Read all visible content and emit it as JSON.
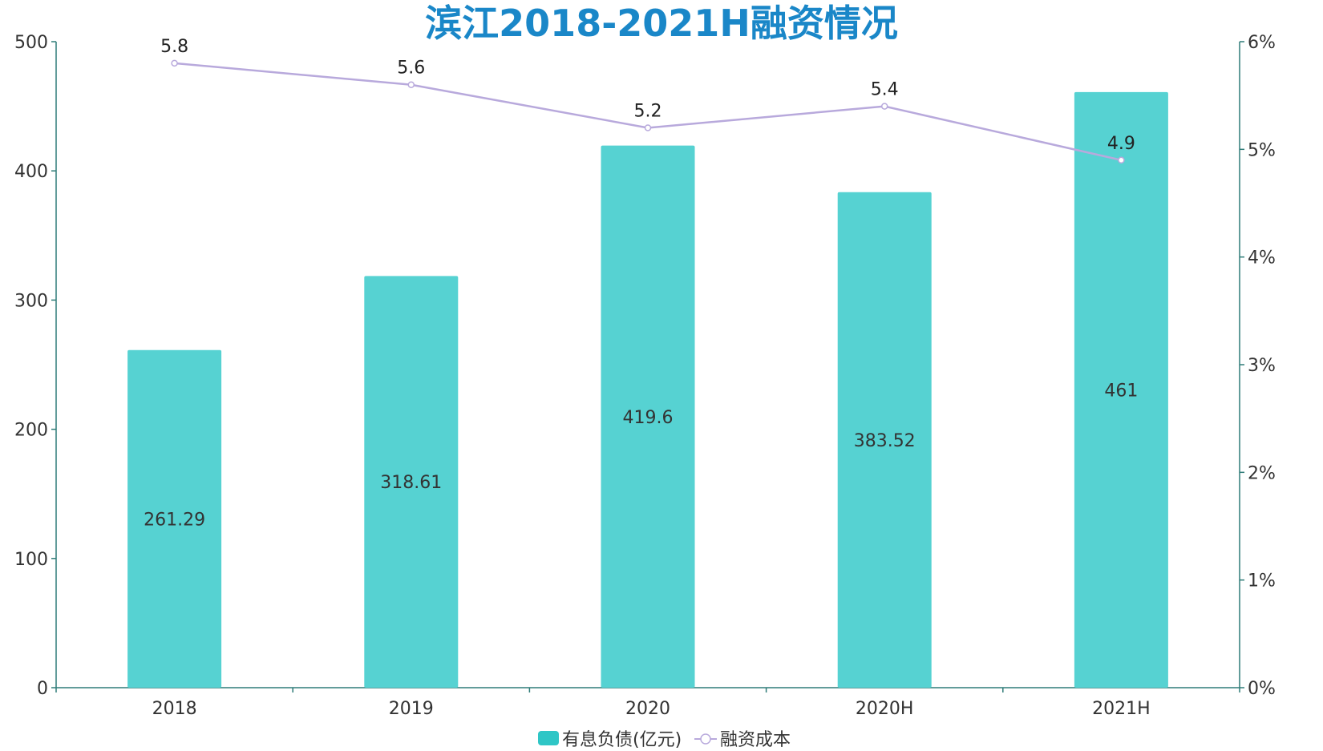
{
  "chart_data": {
    "type": "bar",
    "title": "滨江2018-2021H融资情况",
    "categories": [
      "2018",
      "2019",
      "2020",
      "2020H",
      "2021H"
    ],
    "series": [
      {
        "name": "有息负债(亿元)",
        "type": "bar",
        "axis": "left",
        "values": [
          261.29,
          318.61,
          419.6,
          383.52,
          461
        ],
        "labels": [
          "261.29",
          "318.61",
          "419.6",
          "383.52",
          "461"
        ]
      },
      {
        "name": "融资成本",
        "type": "line",
        "axis": "right",
        "values": [
          5.8,
          5.6,
          5.2,
          5.4,
          4.9
        ],
        "labels": [
          "5.8",
          "5.6",
          "5.2",
          "5.4",
          "4.9"
        ]
      }
    ],
    "y_left": {
      "range": [
        0,
        500
      ],
      "ticks": [
        "0",
        "100",
        "200",
        "300",
        "400",
        "500"
      ]
    },
    "y_right": {
      "range": [
        0,
        6
      ],
      "ticks": [
        "0%",
        "1%",
        "2%",
        "3%",
        "4%",
        "5%",
        "6%"
      ]
    },
    "colors": {
      "bar": "#56d2d2",
      "line": "#b8a9dc",
      "axis": "#2f7c78",
      "title": "#1a87c8",
      "legend_bar": "#2fc6c6"
    },
    "legend_position": "bottom-center",
    "grid": false
  }
}
